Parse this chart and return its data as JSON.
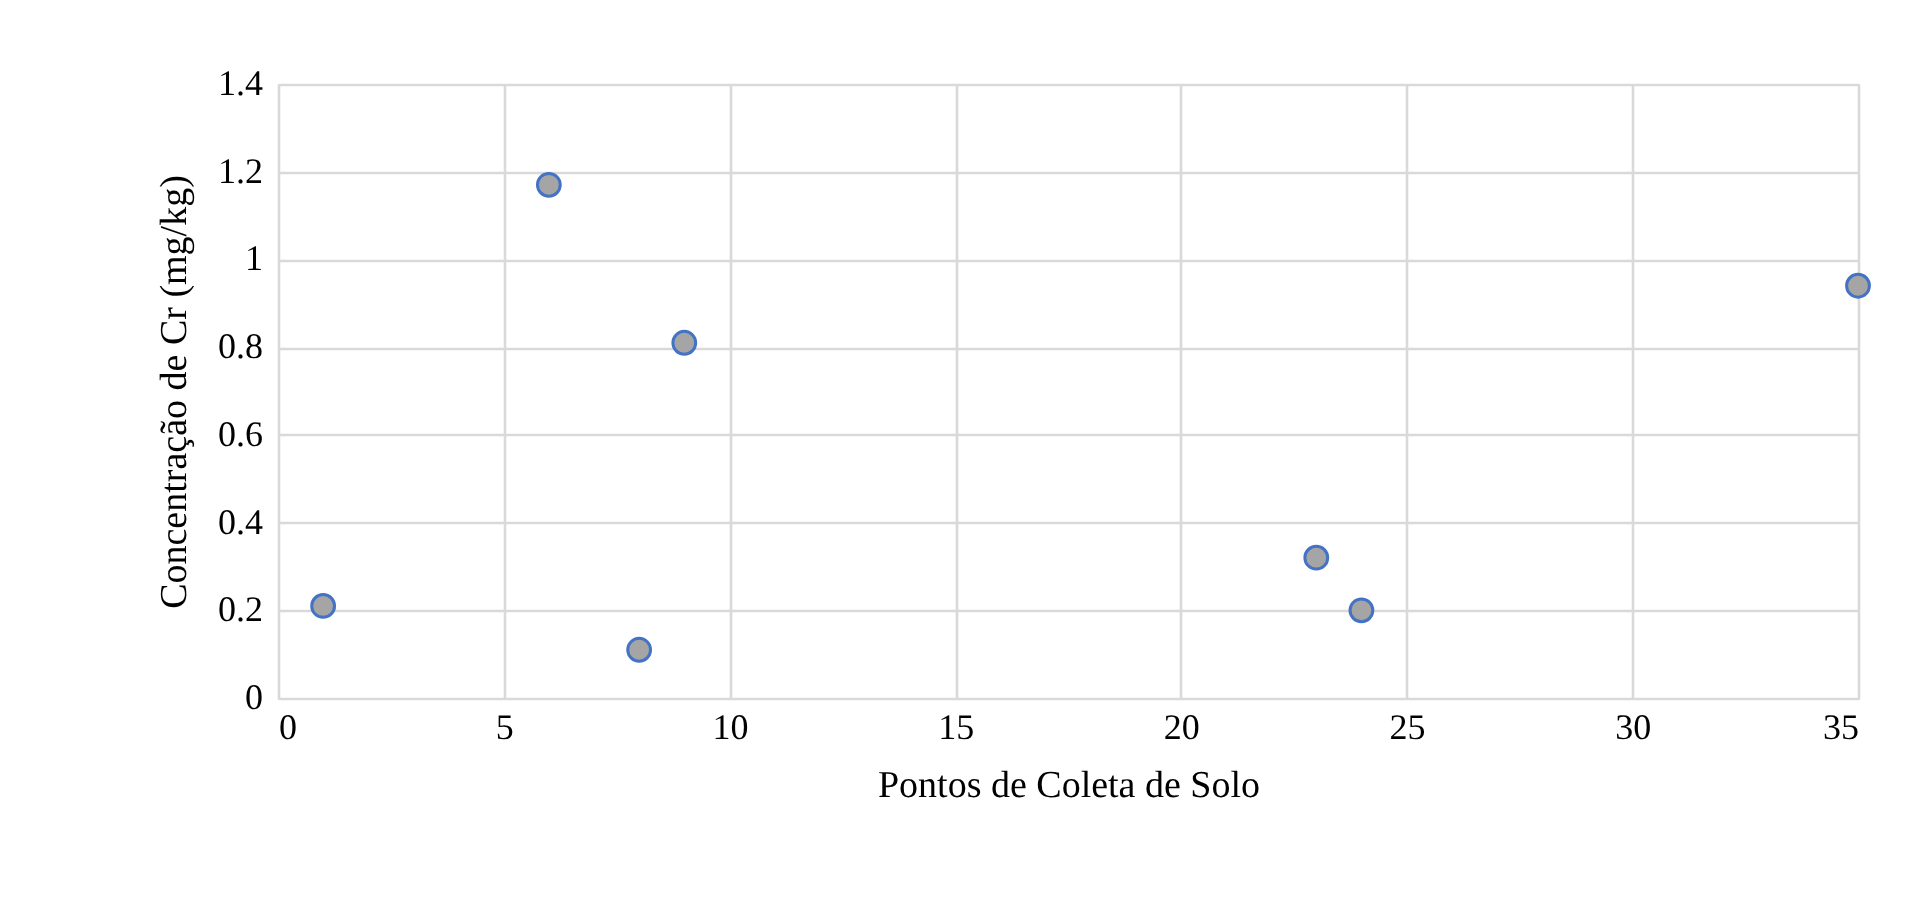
{
  "chart_data": {
    "type": "scatter",
    "xlabel": "Pontos de Coleta de Solo",
    "ylabel": "Concentração de Cr (mg/kg)",
    "x": [
      1,
      6,
      8,
      9,
      23,
      24,
      35
    ],
    "values": [
      0.21,
      1.17,
      0.11,
      0.81,
      0.32,
      0.2,
      0.94
    ],
    "color": "#a5a5a5",
    "marker": "circle",
    "grid": true,
    "xlim": [
      0,
      35
    ],
    "xticks": [
      0,
      5,
      10,
      15,
      20,
      25,
      30,
      35
    ],
    "ylim": [
      0,
      1.4
    ],
    "yticks": [
      0,
      0.2,
      0.4,
      0.6,
      0.8,
      1,
      1.2,
      1.4
    ]
  }
}
